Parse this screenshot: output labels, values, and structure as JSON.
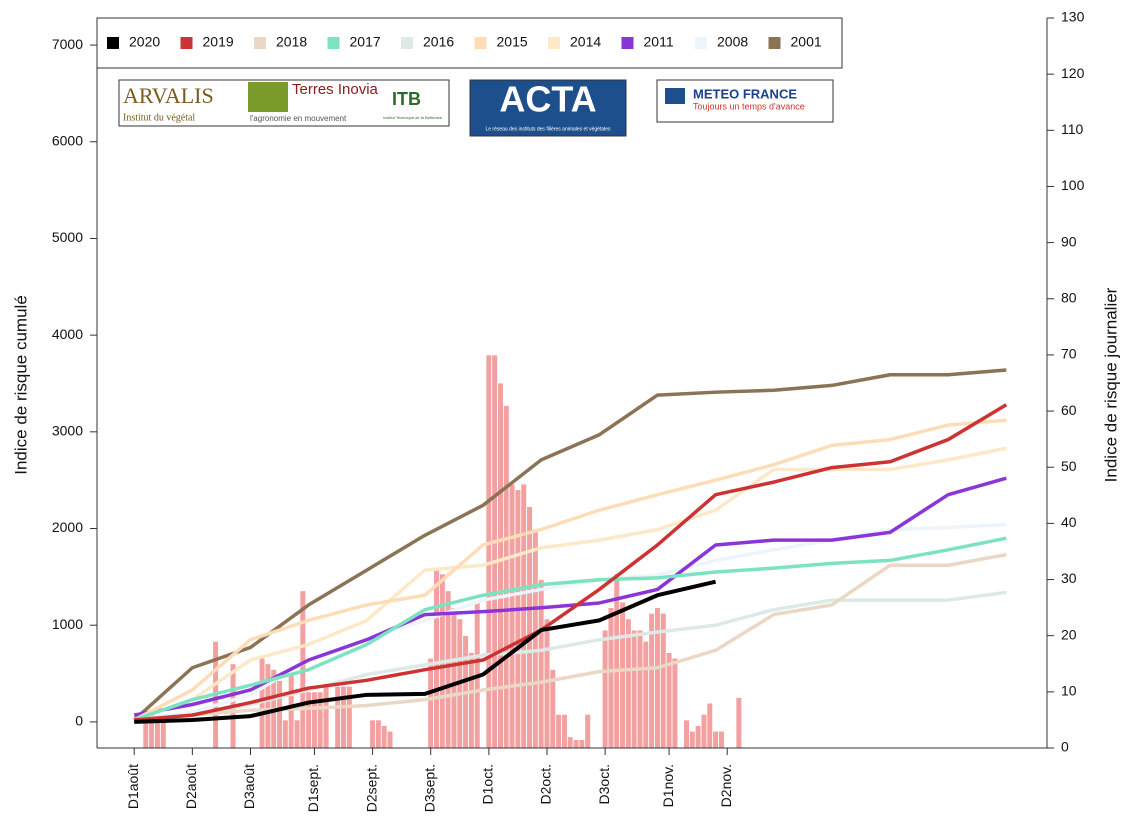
{
  "chart_data": {
    "type": "line",
    "ylabel": "Indice de risque cumulé",
    "y2label": "Indice de risque journalier",
    "x": [
      0,
      10,
      20,
      30,
      40,
      50,
      60,
      70,
      80,
      90,
      100,
      110,
      120,
      130,
      140,
      150
    ],
    "xlim": [
      -6.4,
      157
    ],
    "xticks": [
      {
        "value": 0,
        "label": "D1août"
      },
      {
        "value": 10,
        "label": "D2août"
      },
      {
        "value": 20,
        "label": "D3août"
      },
      {
        "value": 31,
        "label": "D1sept."
      },
      {
        "value": 41,
        "label": "D2sept."
      },
      {
        "value": 51,
        "label": "D3sept."
      },
      {
        "value": 61,
        "label": "D1oct."
      },
      {
        "value": 71,
        "label": "D2oct."
      },
      {
        "value": 81,
        "label": "D3oct."
      },
      {
        "value": 92,
        "label": "D1nov."
      },
      {
        "value": 102,
        "label": "D2nov."
      }
    ],
    "ylim": [
      -270,
      7280
    ],
    "yticks": [
      0,
      1000,
      2000,
      3000,
      4000,
      5000,
      6000,
      7000
    ],
    "y2lim": [
      0,
      130
    ],
    "y2ticks": [
      0,
      10,
      20,
      30,
      40,
      50,
      60,
      70,
      80,
      90,
      100,
      110,
      120,
      130
    ],
    "legend": "top-left",
    "series": [
      {
        "name": "2020",
        "color": "#000000",
        "values": [
          0,
          20,
          60,
          200,
          280,
          290,
          490,
          950,
          1050,
          1310,
          1450,
          null,
          null,
          null,
          null,
          null
        ]
      },
      {
        "name": "2019",
        "color": "#cc3333",
        "values": [
          20,
          70,
          200,
          350,
          430,
          540,
          640,
          950,
          1370,
          1830,
          2350,
          2480,
          2630,
          2690,
          2920,
          3280
        ]
      },
      {
        "name": "2018",
        "color": "#ead8c5",
        "values": [
          20,
          70,
          120,
          140,
          170,
          230,
          330,
          410,
          520,
          560,
          740,
          1110,
          1210,
          1620,
          1620,
          1730
        ]
      },
      {
        "name": "2017",
        "color": "#7be3bf",
        "values": [
          20,
          230,
          380,
          540,
          800,
          1160,
          1310,
          1420,
          1470,
          1490,
          1550,
          1590,
          1640,
          1670,
          1780,
          1900
        ]
      },
      {
        "name": "2016",
        "color": "#dde9e6",
        "values": [
          20,
          70,
          180,
          330,
          490,
          590,
          690,
          740,
          850,
          930,
          1000,
          1160,
          1260,
          1260,
          1260,
          1340
        ]
      },
      {
        "name": "2015",
        "color": "#fdddb8",
        "values": [
          20,
          330,
          850,
          1050,
          1210,
          1310,
          1830,
          1990,
          2190,
          2350,
          2500,
          2660,
          2860,
          2920,
          3070,
          3120
        ]
      },
      {
        "name": "2014",
        "color": "#fde8c8",
        "values": [
          20,
          230,
          640,
          800,
          1050,
          1570,
          1620,
          1800,
          1880,
          1990,
          2190,
          2610,
          2610,
          2610,
          2710,
          2830
        ]
      },
      {
        "name": "2011",
        "color": "#8b35d6",
        "values": [
          70,
          180,
          330,
          640,
          850,
          1110,
          1140,
          1180,
          1230,
          1370,
          1830,
          1880,
          1880,
          1960,
          2350,
          2520
        ]
      },
      {
        "name": "2008",
        "color": "#eef4fb",
        "values": [
          20,
          100,
          280,
          640,
          850,
          1050,
          1260,
          1370,
          1470,
          1520,
          1670,
          1780,
          1880,
          1990,
          2010,
          2040
        ]
      },
      {
        "name": "2001",
        "color": "#8b7355",
        "values": [
          20,
          560,
          770,
          1210,
          1570,
          1930,
          2240,
          2710,
          2970,
          3380,
          3410,
          3430,
          3480,
          3590,
          3590,
          3640
        ]
      },
      {
        "type": "bar",
        "axis": "y2",
        "color": "#f2a0a0",
        "x": [
          2,
          3,
          4,
          5,
          14,
          17,
          22,
          23,
          24,
          25,
          26,
          27,
          28,
          29,
          30,
          31,
          32,
          33,
          35,
          36,
          37,
          41,
          42,
          43,
          44,
          51,
          52,
          53,
          54,
          55,
          56,
          57,
          58,
          59,
          61,
          62,
          63,
          64,
          65,
          66,
          67,
          68,
          69,
          70,
          71,
          72,
          73,
          74,
          75,
          76,
          77,
          78,
          81,
          82,
          83,
          84,
          85,
          86,
          87,
          88,
          89,
          90,
          91,
          92,
          93,
          95,
          96,
          97,
          98,
          99,
          100,
          101,
          104
        ],
        "values": [
          6,
          6,
          5,
          6,
          19,
          15,
          16,
          15,
          14,
          12,
          5,
          13,
          5,
          28,
          10,
          10,
          10,
          11,
          11,
          11,
          11,
          5,
          5,
          4,
          3,
          16,
          32,
          31,
          28,
          25,
          23,
          20,
          17,
          26,
          70,
          70,
          65,
          61,
          47,
          46,
          47,
          43,
          39,
          30,
          23,
          14,
          6,
          6,
          2,
          1.5,
          1.5,
          6,
          21,
          25,
          31,
          26,
          23,
          21,
          21,
          19,
          24,
          25,
          24,
          17,
          16,
          5,
          3,
          4,
          6,
          8,
          3,
          3,
          9
        ]
      }
    ]
  },
  "logos": [
    {
      "name": "ARVALIS",
      "tagline": "Institut du végétal"
    },
    {
      "name": "Terres Inovia",
      "tagline": "l'agronomie en mouvement"
    },
    {
      "name": "ITB",
      "tagline": "Institut Technique de la Betterave"
    },
    {
      "name": "ACTA",
      "tagline": "Le réseau des instituts des filières animales et végétales"
    },
    {
      "name": "METEO FRANCE",
      "tagline": "Toujours un temps d'avance"
    }
  ]
}
